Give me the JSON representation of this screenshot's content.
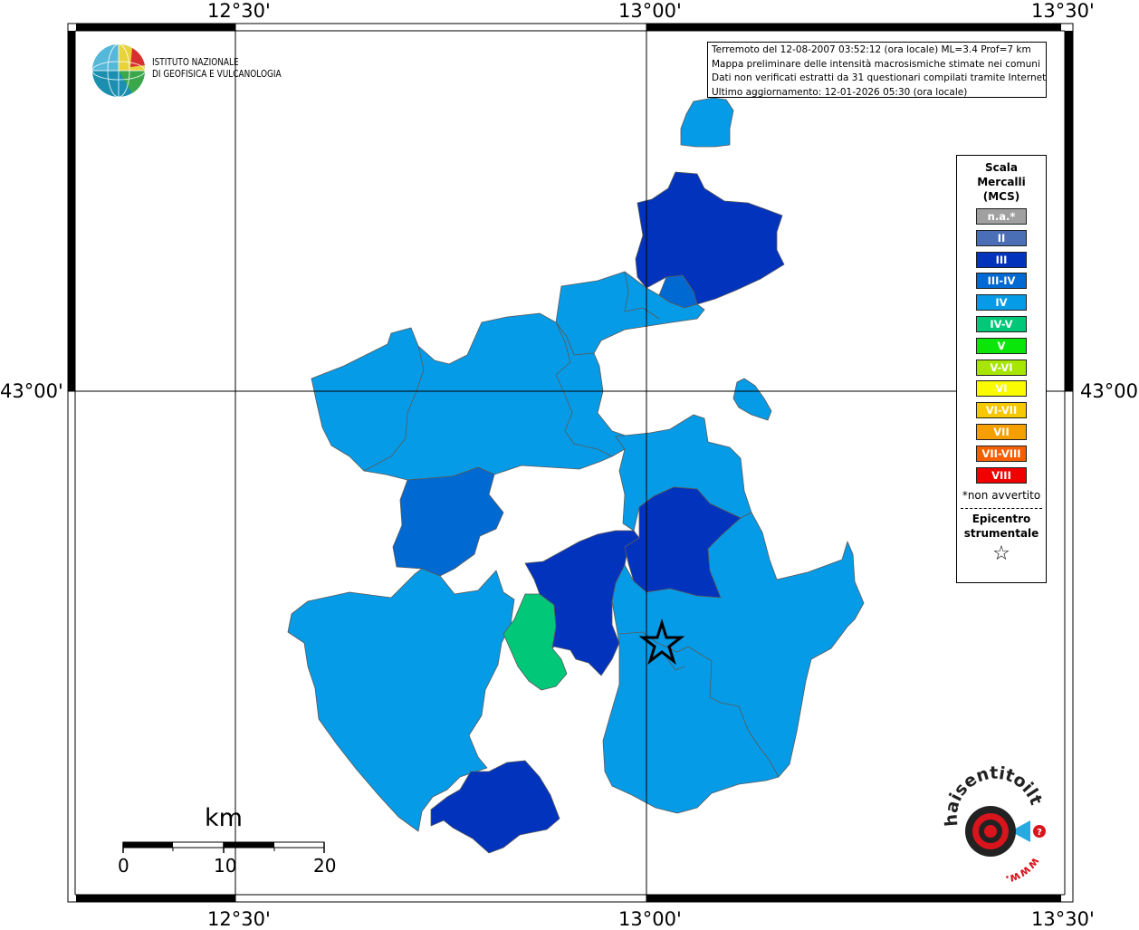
{
  "map": {
    "lon_labels": [
      "12°30'",
      "13°00'",
      "13°30'"
    ],
    "lat_labels": [
      "43°00'",
      "43°00'"
    ]
  },
  "logo": {
    "line1": "ISTITUTO NAZIONALE",
    "line2": "DI GEOFISICA E VULCANOLOGIA"
  },
  "info": {
    "line1": "Terremoto del 12-08-2007 03:52:12 (ora locale) ML=3.4 Prof=7 km",
    "line2": "Mappa preliminare delle intensità macrosismiche stimate nei comuni",
    "line3": "Dati non verificati estratti da 31 questionari compilati tramite Internet.",
    "line4": "Ultimo aggiornamento: 12-01-2026 05:30 (ora locale)"
  },
  "legend": {
    "title1": "Scala",
    "title2": "Mercalli",
    "title3": "(MCS)",
    "items": [
      {
        "label": "n.a.*",
        "color": "#a0a0a0"
      },
      {
        "label": "II",
        "color": "#4a6fb6"
      },
      {
        "label": "III",
        "color": "#0233bd"
      },
      {
        "label": "III-IV",
        "color": "#0069d2"
      },
      {
        "label": "IV",
        "color": "#069be6"
      },
      {
        "label": "IV-V",
        "color": "#00c878"
      },
      {
        "label": "V",
        "color": "#0ae60a"
      },
      {
        "label": "V-VI",
        "color": "#a6e600"
      },
      {
        "label": "VI",
        "color": "#fafa00"
      },
      {
        "label": "VI-VII",
        "color": "#f5c800"
      },
      {
        "label": "VII",
        "color": "#f5a000"
      },
      {
        "label": "VII-VIII",
        "color": "#f55f00"
      },
      {
        "label": "VIII",
        "color": "#f00000"
      }
    ],
    "note": "*non avvertito",
    "epi1": "Epicentro",
    "epi2": "strumentale"
  },
  "scalebar": {
    "title": "km",
    "ticks": [
      "0",
      "10",
      "20"
    ]
  },
  "hst_logo": {
    "text": "haisentitoilterremoto.it",
    "prefix": "www."
  },
  "colors": {
    "intensity_III": "#0233bd",
    "intensity_III_IV": "#0069d2",
    "intensity_IV": "#069be6",
    "intensity_IV_V": "#00c878"
  }
}
